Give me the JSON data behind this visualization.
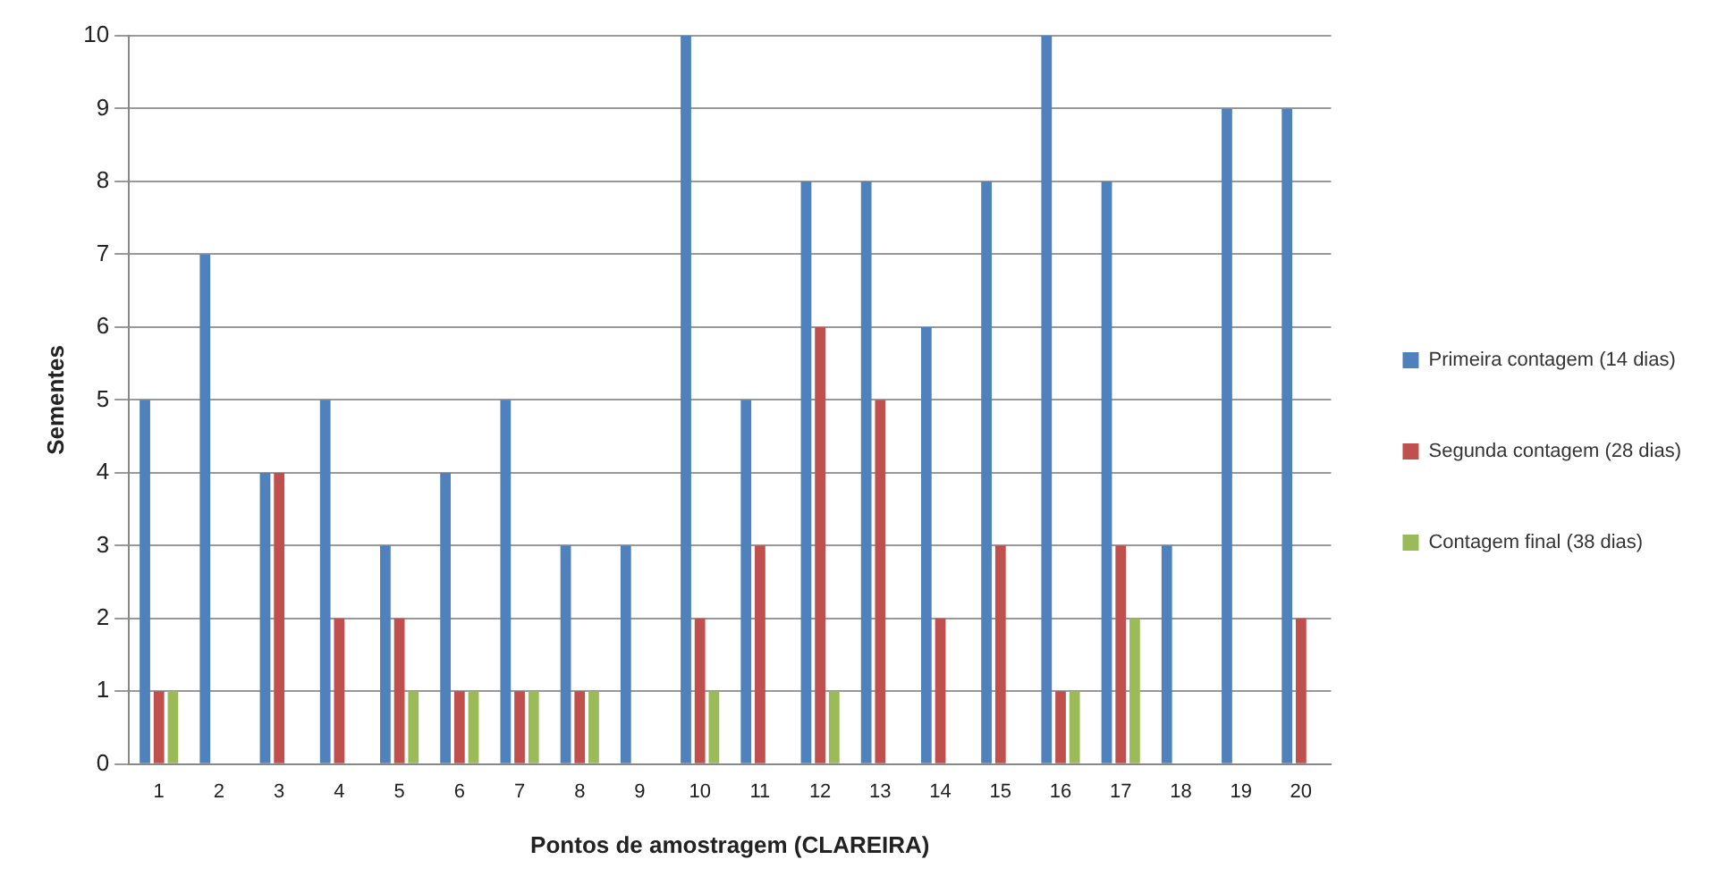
{
  "chart_data": {
    "type": "bar",
    "xlabel": "Pontos de amostragem (CLAREIRA)",
    "ylabel": "Sementes",
    "categories": [
      "1",
      "2",
      "3",
      "4",
      "5",
      "6",
      "7",
      "8",
      "9",
      "10",
      "11",
      "12",
      "13",
      "14",
      "15",
      "16",
      "17",
      "18",
      "19",
      "20"
    ],
    "series": [
      {
        "name": "Primeira contagem (14 dias)",
        "color": "#4f81bd",
        "values": [
          5,
          7,
          4,
          5,
          3,
          4,
          5,
          3,
          3,
          10,
          5,
          8,
          8,
          6,
          8,
          10,
          8,
          3,
          9,
          9
        ]
      },
      {
        "name": "Segunda contagem (28 dias)",
        "color": "#c0504d",
        "values": [
          1,
          0,
          4,
          2,
          2,
          1,
          1,
          1,
          0,
          2,
          3,
          6,
          5,
          2,
          3,
          1,
          3,
          0,
          0,
          2
        ]
      },
      {
        "name": "Contagem final (38 dias)",
        "color": "#9bbb59",
        "values": [
          1,
          0,
          0,
          0,
          1,
          1,
          1,
          1,
          0,
          1,
          0,
          1,
          0,
          0,
          0,
          1,
          2,
          0,
          0,
          0
        ]
      }
    ],
    "ylim": [
      0,
      10
    ],
    "yticks": [
      0,
      1,
      2,
      3,
      4,
      5,
      6,
      7,
      8,
      9,
      10
    ],
    "grid": "y",
    "legend": "right"
  }
}
